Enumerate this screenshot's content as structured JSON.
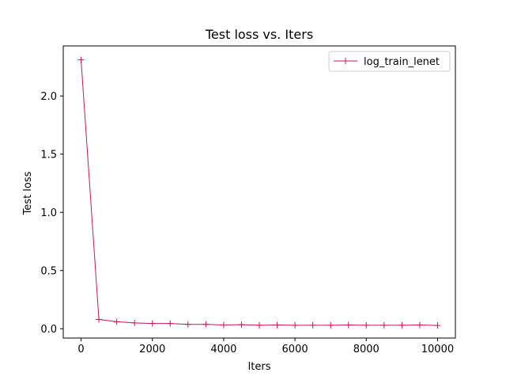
{
  "chart_data": {
    "type": "line",
    "title": "Test loss  vs. Iters",
    "xlabel": "Iters",
    "ylabel": "Test loss",
    "xlim": [
      -500,
      10500
    ],
    "ylim": [
      -0.08,
      2.43
    ],
    "xticks": [
      0,
      2000,
      4000,
      6000,
      8000,
      10000
    ],
    "xtick_labels": [
      "0",
      "2000",
      "4000",
      "6000",
      "8000",
      "10000"
    ],
    "yticks": [
      0.0,
      0.5,
      1.0,
      1.5,
      2.0
    ],
    "ytick_labels": [
      "0.0",
      "0.5",
      "1.0",
      "1.5",
      "2.0"
    ],
    "grid": false,
    "legend_position": "top-right",
    "series": [
      {
        "name": "log_train_lenet",
        "color": "#c2185b",
        "marker": "plus",
        "x": [
          0,
          500,
          1000,
          1500,
          2000,
          2500,
          3000,
          3500,
          4000,
          4500,
          5000,
          5500,
          6000,
          6500,
          7000,
          7500,
          8000,
          8500,
          9000,
          9500,
          10000
        ],
        "y": [
          2.31,
          0.08,
          0.06,
          0.05,
          0.045,
          0.045,
          0.037,
          0.038,
          0.032,
          0.035,
          0.03,
          0.032,
          0.03,
          0.03,
          0.03,
          0.032,
          0.03,
          0.03,
          0.03,
          0.032,
          0.028
        ]
      }
    ]
  }
}
